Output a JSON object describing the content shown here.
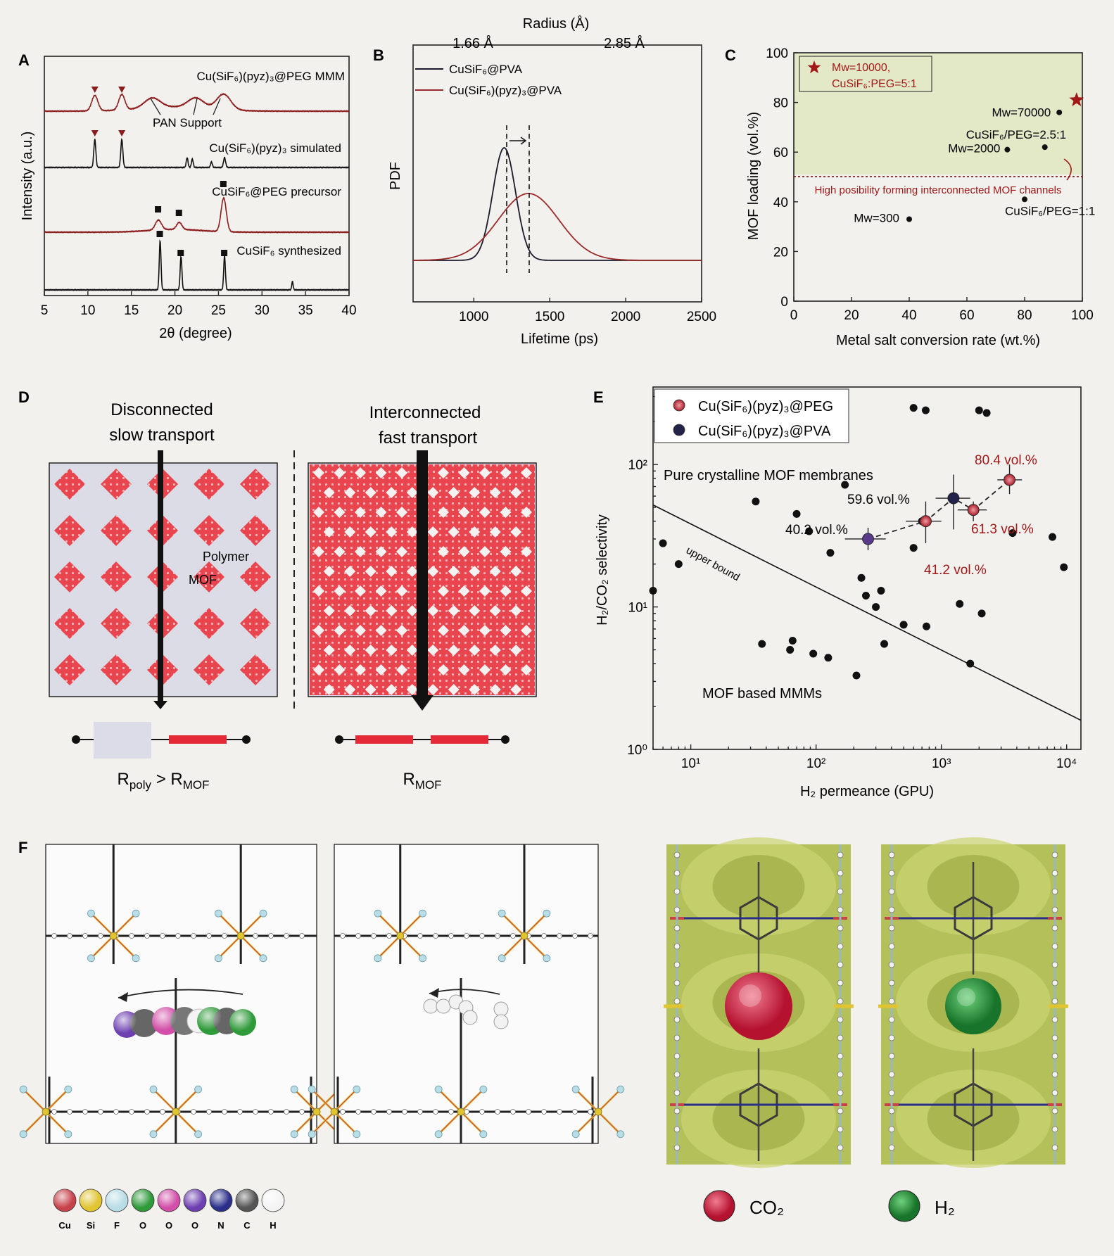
{
  "panels": {
    "A": {
      "label": "A",
      "xlabel": "2θ (degree)",
      "ylabel": "Intensity (a.u.)",
      "xticks": [
        "5",
        "10",
        "15",
        "20",
        "25",
        "30",
        "35",
        "40"
      ],
      "traces": [
        {
          "name": "Cu(SiF₆)(pyz)₃@PEG MMM",
          "color": "#8b1c1c"
        },
        {
          "name": "Cu(SiF₆)(pyz)₃ simulated",
          "color": "#111111"
        },
        {
          "name": "CuSiF₆@PEG precursor",
          "color": "#8b1c1c"
        },
        {
          "name": "CuSiF₆ synthesized",
          "color": "#111111"
        }
      ],
      "annotation": "PAN Support"
    },
    "B": {
      "label": "B",
      "xlabel": "Lifetime (ps)",
      "ylabel": "PDF",
      "top_axis_label": "Radius (Å)",
      "top_ticks": [
        "1.66 Å",
        "2.85 Å"
      ],
      "xticks": [
        "1000",
        "1500",
        "2000",
        "2500"
      ],
      "legend": [
        {
          "name": "CuSiF₆@PVA",
          "color": "#1a1a2a"
        },
        {
          "name": "Cu(SiF₆)(pyz)₃@PVA",
          "color": "#9b2a2a"
        }
      ]
    },
    "C": {
      "label": "C",
      "xlabel": "Metal salt conversion rate (wt.%)",
      "ylabel": "MOF loading (vol.%)",
      "xticks": [
        "0",
        "20",
        "40",
        "60",
        "80",
        "100"
      ],
      "yticks": [
        "0",
        "20",
        "40",
        "60",
        "80",
        "100"
      ],
      "legend_line1": "Mw=10000,",
      "legend_line2": "CuSiF₆:PEG=5:1",
      "threshold_label": "High posibility forming interconnected MOF channels",
      "point_labels": [
        "Mw=70000",
        "CuSiF₆/PEG=2.5:1",
        "Mw=2000",
        "CuSiF₆/PEG=1:1",
        "Mw=300"
      ]
    },
    "D": {
      "label": "D",
      "left_title_1": "Disconnected",
      "left_title_2": "slow transport",
      "right_title_1": "Interconnected",
      "right_title_2": "fast transport",
      "polymer_label": "Polymer",
      "mof_label": "MOF",
      "left_formula": "R_poly > R_MOF",
      "right_formula": "R_MOF"
    },
    "E": {
      "label": "E",
      "xlabel": "H₂ permeance (GPU)",
      "ylabel": "H₂/CO₂ selectivity",
      "xticks": [
        "10¹",
        "10²",
        "10³",
        "10⁴"
      ],
      "yticks": [
        "10⁰",
        "10¹",
        "10²"
      ],
      "legend": [
        {
          "name": "Cu(SiF₆)(pyz)₃@PEG",
          "color": "#c0272d"
        },
        {
          "name": "Cu(SiF₆)(pyz)₃@PVA",
          "color": "#23234a"
        }
      ],
      "upper_bound_label": "upper bound",
      "region_pure": "Pure crystalline MOF membranes",
      "region_mmm": "MOF based MMMs",
      "loadings": [
        "40.2 vol.%",
        "59.6 vol.%",
        "41.2 vol.%",
        "61.3 vol.%",
        "80.4 vol.%"
      ]
    },
    "F": {
      "label": "F",
      "element_legend": [
        {
          "symbol": "Cu",
          "color": "#c8424a"
        },
        {
          "symbol": "Si",
          "color": "#e0c430"
        },
        {
          "symbol": "F",
          "color": "#b8dde6"
        },
        {
          "symbol": "O",
          "color": "#2f9a3a"
        },
        {
          "symbol": "O",
          "color": "#d24ea8"
        },
        {
          "symbol": "O",
          "color": "#6d3fb0"
        },
        {
          "symbol": "N",
          "color": "#2b2f8a"
        },
        {
          "symbol": "C",
          "color": "#555555"
        },
        {
          "symbol": "H",
          "color": "#f4f4f4"
        }
      ],
      "gas_legend": [
        {
          "name": "CO₂",
          "color": "#d4334a"
        },
        {
          "name": "H₂",
          "color": "#2a9a3c"
        }
      ]
    }
  },
  "chart_data": [
    {
      "type": "line",
      "panel": "A",
      "xlabel": "2θ (degree)",
      "ylabel": "Intensity (a.u.)",
      "xlim": [
        5,
        40
      ],
      "series": [
        {
          "name": "Cu(SiF₆)(pyz)₃@PEG MMM",
          "peaks": [
            10.8,
            13.9,
            17.4,
            22.4,
            25.6
          ]
        },
        {
          "name": "Cu(SiF₆)(pyz)₃ simulated",
          "peaks": [
            10.8,
            13.9,
            21.4,
            22.0,
            24.2,
            25.7
          ]
        },
        {
          "name": "CuSiF₆@PEG precursor",
          "peaks": [
            18.1,
            20.5,
            25.6
          ]
        },
        {
          "name": "CuSiF₆ synthesized",
          "peaks": [
            18.3,
            20.7,
            25.7,
            33.5
          ]
        }
      ]
    },
    {
      "type": "line",
      "panel": "B",
      "xlabel": "Lifetime (ps)",
      "ylabel": "PDF",
      "xlim": [
        600,
        2500
      ],
      "series": [
        {
          "name": "CuSiF₆@PVA",
          "peak_center": 1200,
          "peak_width": 75
        },
        {
          "name": "Cu(SiF₆)(pyz)₃@PVA",
          "peak_center": 1360,
          "peak_width": 200
        }
      ]
    },
    {
      "type": "scatter",
      "panel": "C",
      "xlabel": "Metal salt conversion rate (wt.%)",
      "ylabel": "MOF loading (vol.%)",
      "xlim": [
        0,
        100
      ],
      "ylim": [
        0,
        100
      ],
      "threshold_y": 50,
      "points": [
        {
          "x": 40,
          "y": 33,
          "label": "Mw=300"
        },
        {
          "x": 80,
          "y": 41,
          "label": "CuSiF₆/PEG=1:1"
        },
        {
          "x": 74,
          "y": 61,
          "label": "Mw=2000"
        },
        {
          "x": 87,
          "y": 62,
          "label": "CuSiF₆/PEG=2.5:1"
        },
        {
          "x": 92,
          "y": 76,
          "label": "Mw=70000"
        },
        {
          "x": 98,
          "y": 81,
          "label": "Mw=10000,",
          "marker": "star"
        }
      ]
    },
    {
      "type": "scatter",
      "panel": "E",
      "xlabel": "H₂ permeance (GPU)",
      "ylabel": "H₂/CO₂ selectivity",
      "xscale": "log",
      "yscale": "log",
      "xlim": [
        5,
        13000
      ],
      "ylim": [
        1,
        350
      ],
      "series": [
        {
          "name": "Cu(SiF₆)(pyz)₃@PEG",
          "points": [
            {
              "x": 750,
              "y": 40,
              "label": "41.2 vol.%"
            },
            {
              "x": 1800,
              "y": 48,
              "label": "61.3 vol.%"
            },
            {
              "x": 3500,
              "y": 78,
              "label": "80.4 vol.%"
            }
          ]
        },
        {
          "name": "Cu(SiF₆)(pyz)₃@PVA",
          "points": [
            {
              "x": 260,
              "y": 30,
              "label": "40.2 vol.%"
            },
            {
              "x": 1250,
              "y": 58,
              "label": "59.6 vol.%"
            }
          ]
        },
        {
          "name": "literature",
          "points": [
            [
              5,
              13
            ],
            [
              6,
              28
            ],
            [
              8,
              20
            ],
            [
              33,
              55
            ],
            [
              70,
              45
            ],
            [
              88,
              34
            ],
            [
              37,
              5.5
            ],
            [
              62,
              5
            ],
            [
              65,
              5.8
            ],
            [
              95,
              4.7
            ],
            [
              125,
              4.4
            ],
            [
              130,
              24
            ],
            [
              170,
              72
            ],
            [
              210,
              3.3
            ],
            [
              230,
              16
            ],
            [
              250,
              12
            ],
            [
              300,
              10
            ],
            [
              330,
              13
            ],
            [
              350,
              5.5
            ],
            [
              500,
              7.5
            ],
            [
              600,
              26
            ],
            [
              700,
              40
            ],
            [
              760,
              7.3
            ],
            [
              1400,
              10.5
            ],
            [
              1700,
              4
            ],
            [
              2100,
              9
            ],
            [
              2300,
              230
            ],
            [
              3700,
              33
            ],
            [
              600,
              250
            ],
            [
              750,
              240
            ],
            [
              2000,
              240
            ],
            [
              7700,
              31
            ],
            [
              9500,
              19
            ]
          ]
        }
      ],
      "upper_bound": [
        [
          5,
          52
        ],
        [
          13000,
          1.6
        ]
      ]
    }
  ]
}
